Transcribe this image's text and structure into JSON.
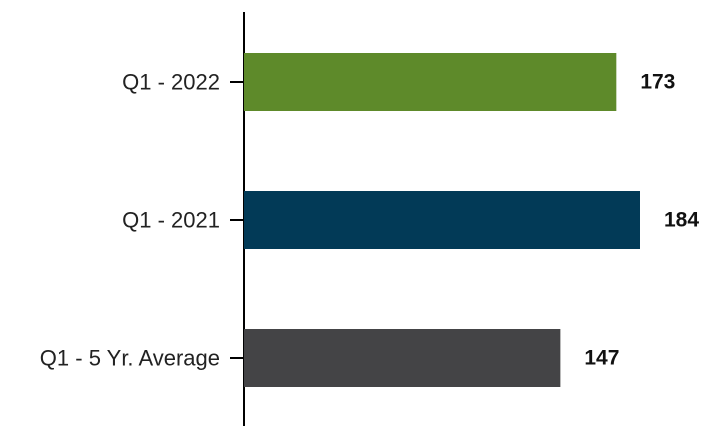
{
  "chart_data": {
    "type": "bar",
    "orientation": "horizontal",
    "categories": [
      "Q1 - 2022",
      "Q1 - 2021",
      "Q1 - 5 Yr. Average"
    ],
    "values": [
      173,
      184,
      147
    ],
    "colors": [
      "#5e8a2a",
      "#023a57",
      "#444446"
    ],
    "data_labels": [
      "173",
      "184",
      "147"
    ],
    "title": "",
    "xlabel": "",
    "ylabel": "",
    "xlim": [
      0,
      200
    ],
    "grid": false,
    "legend": "none"
  }
}
